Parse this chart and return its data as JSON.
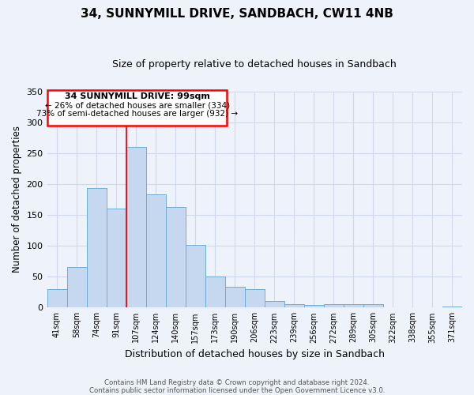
{
  "title1": "34, SUNNYMILL DRIVE, SANDBACH, CW11 4NB",
  "title2": "Size of property relative to detached houses in Sandbach",
  "xlabel": "Distribution of detached houses by size in Sandbach",
  "ylabel": "Number of detached properties",
  "bar_labels": [
    "41sqm",
    "58sqm",
    "74sqm",
    "91sqm",
    "107sqm",
    "124sqm",
    "140sqm",
    "157sqm",
    "173sqm",
    "190sqm",
    "206sqm",
    "223sqm",
    "239sqm",
    "256sqm",
    "272sqm",
    "289sqm",
    "305sqm",
    "322sqm",
    "338sqm",
    "355sqm",
    "371sqm"
  ],
  "bar_values": [
    30,
    65,
    193,
    160,
    260,
    183,
    163,
    102,
    50,
    33,
    30,
    11,
    5,
    4,
    5,
    5,
    6,
    0,
    0,
    0,
    2
  ],
  "bar_color": "#c5d8f0",
  "bar_edge_color": "#6baed6",
  "bg_color": "#eef2fa",
  "grid_color": "#d0d8ee",
  "ylim": [
    0,
    350
  ],
  "yticks": [
    0,
    50,
    100,
    150,
    200,
    250,
    300,
    350
  ],
  "vline_x_index": 3.5,
  "annotation_title": "34 SUNNYMILL DRIVE: 99sqm",
  "annotation_line1": "← 26% of detached houses are smaller (334)",
  "annotation_line2": "73% of semi-detached houses are larger (932) →",
  "footer1": "Contains HM Land Registry data © Crown copyright and database right 2024.",
  "footer2": "Contains public sector information licensed under the Open Government Licence v3.0."
}
